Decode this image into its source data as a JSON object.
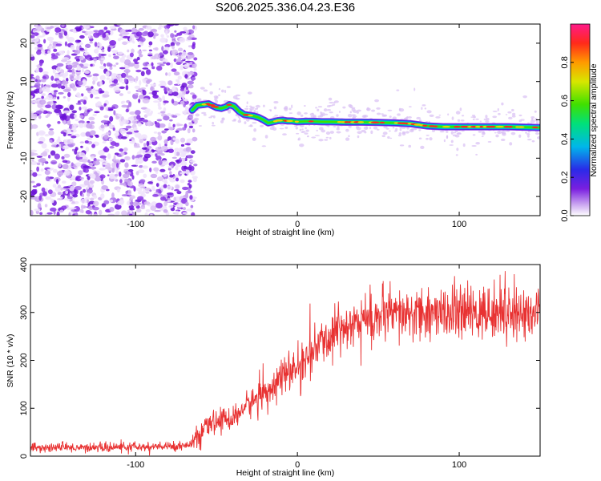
{
  "title": "S206.2025.336.04.23.E36",
  "chart_data": [
    {
      "type": "heatmap",
      "name": "spectrogram",
      "xlabel": "Height of straight line (km)",
      "ylabel": "Frequency (Hz)",
      "xlim": [
        -165,
        150
      ],
      "ylim": [
        -25,
        25
      ],
      "xticks": [
        -100,
        0,
        100
      ],
      "xtick_labels": [
        "-100",
        "0",
        "100"
      ],
      "yticks": [
        -20,
        -10,
        0,
        10,
        20
      ],
      "ytick_labels": [
        "-20",
        "-10",
        "0",
        "10",
        "20"
      ],
      "noise_region_x": [
        -165,
        -65
      ],
      "signal_track": {
        "x": [
          -65,
          -62,
          -58,
          -55,
          -52,
          -50,
          -47,
          -44,
          -42,
          -39,
          -36,
          -33,
          -30,
          -27,
          -24,
          -21,
          -18,
          -15,
          -12,
          -9,
          -6,
          -3,
          0,
          5,
          10,
          15,
          20,
          30,
          40,
          50,
          60,
          70,
          75,
          80,
          90,
          100,
          110,
          120,
          130,
          140,
          150
        ],
        "y": [
          2.5,
          3.8,
          4.0,
          4.2,
          3.6,
          3.2,
          3.0,
          3.4,
          4.0,
          3.5,
          2.2,
          1.4,
          1.2,
          1.0,
          0.6,
          0.0,
          -0.8,
          -0.5,
          -0.2,
          -0.1,
          -0.3,
          -0.3,
          -0.5,
          -0.4,
          -0.4,
          -0.5,
          -0.5,
          -0.6,
          -0.6,
          -0.7,
          -0.8,
          -1.0,
          -1.3,
          -1.6,
          -1.8,
          -1.8,
          -1.8,
          -1.8,
          -1.8,
          -1.9,
          -2.0
        ]
      },
      "colorbar": {
        "label": "Normalized spectral amplitude",
        "range": [
          0,
          1
        ],
        "ticks": [
          0.0,
          0.2,
          0.4,
          0.6,
          0.8
        ],
        "tick_labels": [
          "0.0",
          "0.2",
          "0.4",
          "0.6",
          "0.8"
        ]
      }
    },
    {
      "type": "line",
      "name": "snr",
      "xlabel": "Height of straight line (km)",
      "ylabel": "SNR (10 * v/v)",
      "xlim": [
        -165,
        150
      ],
      "ylim": [
        0,
        400
      ],
      "xticks": [
        -100,
        0,
        100
      ],
      "xtick_labels": [
        "-100",
        "0",
        "100"
      ],
      "yticks": [
        0,
        100,
        200,
        300,
        400
      ],
      "ytick_labels": [
        "0",
        "100",
        "200",
        "300",
        "400"
      ],
      "series": [
        {
          "name": "SNR",
          "color": "#e83232",
          "x": [
            -165,
            -150,
            -140,
            -130,
            -120,
            -110,
            -100,
            -90,
            -80,
            -70,
            -65,
            -60,
            -55,
            -50,
            -45,
            -40,
            -35,
            -30,
            -25,
            -20,
            -15,
            -10,
            -5,
            0,
            5,
            10,
            15,
            20,
            25,
            30,
            40,
            50,
            60,
            70,
            80,
            90,
            100,
            110,
            120,
            130,
            140,
            150
          ],
          "values": [
            18,
            18,
            18,
            18,
            18,
            19,
            19,
            19,
            20,
            22,
            28,
            45,
            65,
            70,
            80,
            75,
            95,
            110,
            120,
            135,
            150,
            165,
            175,
            185,
            200,
            220,
            235,
            250,
            265,
            280,
            285,
            290,
            292,
            295,
            297,
            300,
            298,
            298,
            300,
            300,
            298,
            300
          ]
        }
      ]
    }
  ]
}
